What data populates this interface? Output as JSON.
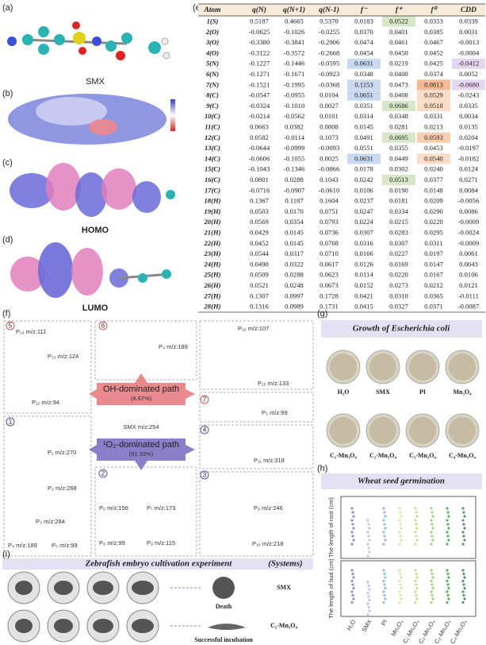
{
  "panel_labels": [
    "(a)",
    "(b)",
    "(c)",
    "(d)",
    "(e)",
    "(f)",
    "(g)",
    "(h)",
    "(i)"
  ],
  "molecules": {
    "smx": "SMX",
    "homo": "HOMO",
    "lumo": "LUMO"
  },
  "table": {
    "header": [
      "Atom",
      "q(N)",
      "q(N+1)",
      "q(N-1)",
      "f⁻",
      "f⁺",
      "f⁰",
      "CDD"
    ],
    "rows": [
      [
        "1(S)",
        "0.5187",
        "0.4665",
        "0.5370",
        "0.0183",
        "0.0522",
        "0.0353",
        "0.0339"
      ],
      [
        "2(O)",
        "-0.0625",
        "-0.1026",
        "-0.0255",
        "0.0370",
        "0.0401",
        "0.0385",
        "0.0031"
      ],
      [
        "3(O)",
        "-0.3380",
        "-0.3841",
        "-0.2906",
        "0.0474",
        "0.0461",
        "0.0467",
        "-0.0013"
      ],
      [
        "4(O)",
        "-0.3122",
        "-0.3572",
        "-0.2668",
        "0.0454",
        "0.0450",
        "0.0452",
        "-0.0004"
      ],
      [
        "5(N)",
        "-0.1227",
        "-0.1446",
        "-0.0595",
        "0.0631",
        "0.0219",
        "0.0425",
        "-0.0412"
      ],
      [
        "6(N)",
        "-0.1271",
        "-0.1671",
        "-0.0923",
        "0.0348",
        "0.0400",
        "0.0374",
        "0.0052"
      ],
      [
        "7(N)",
        "-0.1521",
        "-0.1995",
        "-0.0368",
        "0.1153",
        "0.0473",
        "0.0813",
        "-0.0680"
      ],
      [
        "8(C)",
        "-0.0547",
        "-0.0955",
        "0.0104",
        "0.0651",
        "0.0408",
        "0.0529",
        "-0.0243"
      ],
      [
        "9(C)",
        "-0.0324",
        "-0.1010",
        "0.0027",
        "0.0351",
        "0.0686",
        "0.0518",
        "0.0335"
      ],
      [
        "10(C)",
        "-0.0214",
        "-0.0562",
        "0.0101",
        "0.0314",
        "0.0348",
        "0.0331",
        "0.0034"
      ],
      [
        "11(C)",
        "0.0663",
        "0.0382",
        "0.0808",
        "0.0145",
        "0.0281",
        "0.0213",
        "0.0135"
      ],
      [
        "12(C)",
        "0.0582",
        "-0.0114",
        "0.1073",
        "0.0491",
        "0.0695",
        "0.0593",
        "0.0204"
      ],
      [
        "13(C)",
        "-0.0644",
        "-0.0999",
        "-0.0093",
        "0.0551",
        "0.0355",
        "0.0453",
        "-0.0197"
      ],
      [
        "14(C)",
        "-0.0606",
        "-0.1055",
        "0.0025",
        "0.0631",
        "0.0449",
        "0.0540",
        "-0.0182"
      ],
      [
        "15(C)",
        "-0.1043",
        "-0.1346",
        "-0.0866",
        "0.0178",
        "0.0302",
        "0.0240",
        "0.0124"
      ],
      [
        "16(C)",
        "0.0801",
        "0.0288",
        "0.1043",
        "0.0242",
        "0.0513",
        "0.0377",
        "0.0271"
      ],
      [
        "17(C)",
        "-0.0716",
        "-0.0907",
        "-0.0610",
        "0.0106",
        "0.0190",
        "0.0148",
        "0.0084"
      ],
      [
        "18(H)",
        "0.1367",
        "0.1187",
        "0.1604",
        "0.0237",
        "0.0181",
        "0.0209",
        "-0.0056"
      ],
      [
        "19(H)",
        "0.0503",
        "0.0170",
        "0.0751",
        "0.0247",
        "0.0334",
        "0.0290",
        "0.0086"
      ],
      [
        "20(H)",
        "0.0569",
        "0.0354",
        "0.0793",
        "0.0224",
        "0.0215",
        "0.0220",
        "-0.0009"
      ],
      [
        "21(H)",
        "0.0429",
        "0.0145",
        "0.0736",
        "0.0307",
        "0.0283",
        "0.0295",
        "-0.0024"
      ],
      [
        "22(H)",
        "0.0452",
        "0.0145",
        "0.0768",
        "0.0316",
        "0.0307",
        "0.0311",
        "-0.0009"
      ],
      [
        "23(H)",
        "0.0544",
        "0.0317",
        "0.0710",
        "0.0166",
        "0.0227",
        "0.0197",
        "0.0061"
      ],
      [
        "24(H)",
        "0.0490",
        "0.0322",
        "0.0617",
        "0.0126",
        "0.0169",
        "0.0147",
        "0.0043"
      ],
      [
        "25(H)",
        "0.0509",
        "0.0288",
        "0.0623",
        "0.0114",
        "0.0220",
        "0.0167",
        "0.0106"
      ],
      [
        "26(H)",
        "0.0521",
        "0.0248",
        "0.0673",
        "0.0152",
        "0.0273",
        "0.0212",
        "0.0121"
      ],
      [
        "27(H)",
        "0.1307",
        "0.0997",
        "0.1728",
        "0.0421",
        "0.0310",
        "0.0365",
        "-0.0111"
      ],
      [
        "28(H)",
        "0.1316",
        "0.0989",
        "0.1731",
        "0.0415",
        "0.0327",
        "0.0371",
        "-0.0087"
      ]
    ]
  },
  "pathway": {
    "oh_path": "OH-dominated path",
    "oh_share": "(8.67%)",
    "singlet_path": "¹O₂-dominated path",
    "singlet_share": "(91.33%)",
    "parent": "SMX m/z:254",
    "steps": [
      "5",
      "6",
      "7",
      "1",
      "4",
      "2",
      "3"
    ],
    "products": [
      "P₁₄ m/z:111",
      "P₁₃ m/z:124",
      "P₁₂ m/z:94",
      "P₄ m/z:189",
      "P₁₆ m/z:107",
      "P₁₅ m/z:133",
      "P₅ m/z:99",
      "P₁ m/z:270",
      "P₂ m/z:268",
      "P₃ m/z:284",
      "P₄ m/z:189",
      "P₅ m/z:99",
      "P₁₁ m/z:318",
      "P₆ m/z:156",
      "P₇ m/z:173",
      "P₈ m/z:99",
      "P₉ m/z:115",
      "P₉ m/z:246",
      "P₁₀ m/z:218"
    ]
  },
  "ecoli": {
    "title": "Growth of Escherichia coli",
    "labels": [
      "H₂O",
      "SMX",
      "PI",
      "Mn₃O₄",
      "C₁-Mn₃O₄",
      "C₂-Mn₃O₄",
      "C₃-Mn₃O₄",
      "C₄-Mn₃O₄"
    ]
  },
  "wheat": {
    "title": "Wheat seed germination",
    "y_labels": [
      "The length of root (cm)",
      "The length of bud (cm)"
    ],
    "categories": [
      "H₂O",
      "SMX",
      "PI",
      "Mn₃O₄",
      "C₁-Mn₃O₄",
      "C₂-Mn₃O₄",
      "C₃-Mn₃O₄",
      "C₄-Mn₃O₄"
    ]
  },
  "zebrafish": {
    "title": "Zebrafish embryo cultivation experiment",
    "systems": "(Systems)",
    "rows": [
      {
        "outcome": "Death",
        "label": "SMX"
      },
      {
        "outcome": "Successful incubation",
        "label": "C₂-Mn₃O₄"
      }
    ]
  }
}
